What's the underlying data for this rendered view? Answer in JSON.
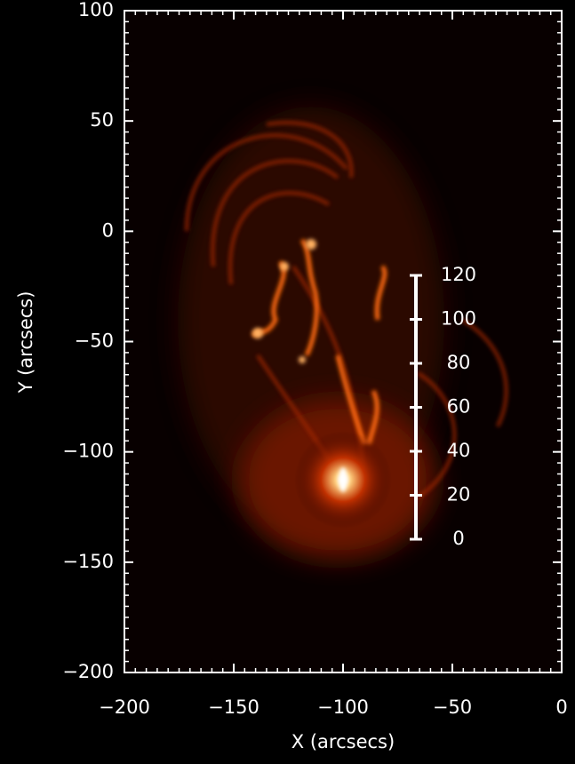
{
  "chart_data": {
    "type": "image",
    "xlabel": "X (arcsecs)",
    "ylabel": "Y (arcsecs)",
    "xlim": [
      -200,
      0
    ],
    "ylim": [
      -200,
      100
    ],
    "xticks": [
      {
        "value": -200,
        "label": "−200"
      },
      {
        "value": -150,
        "label": "−150"
      },
      {
        "value": -100,
        "label": "−100"
      },
      {
        "value": -50,
        "label": "−50"
      },
      0
    ],
    "yticks": [
      {
        "value": -200,
        "label": "−200"
      },
      {
        "value": -150,
        "label": "−150"
      },
      {
        "value": -100,
        "label": "−100"
      },
      {
        "value": -50,
        "label": "−50"
      },
      0,
      50,
      100
    ],
    "scale_bar_ticks": [
      0,
      20,
      40,
      60,
      80,
      100,
      120
    ],
    "scale_bar_color": "#ffffff"
  }
}
